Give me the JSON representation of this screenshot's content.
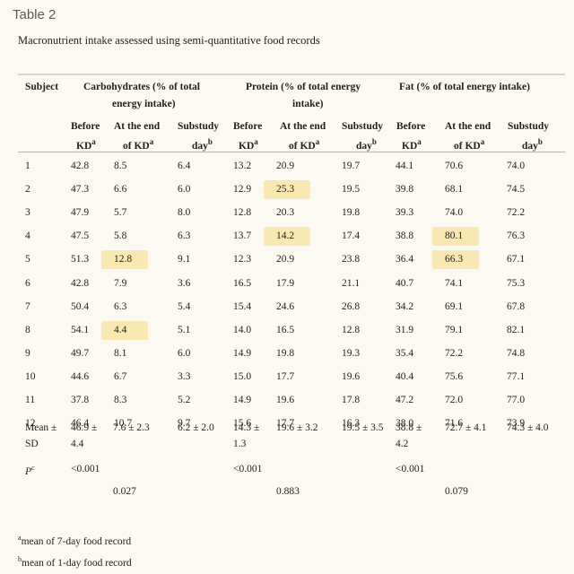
{
  "table_label": "Table 2",
  "caption": "Macronutrient intake assessed using semi-quantitative food records",
  "headers": {
    "subject": "Subject",
    "carb_group_l1": "Carbohydrates (% of total",
    "carb_group_l2": "energy intake)",
    "protein_group_l1": "Protein (% of total energy",
    "protein_group_l2": "intake)",
    "fat_group": "Fat (% of total energy intake)",
    "before_l1": "Before",
    "before_l2": "KD",
    "before_sup": "a",
    "end_l1": "At the end",
    "end_l2": "of KD",
    "end_sup": "a",
    "substudy_l1": "Substudy",
    "substudy_l2": "day",
    "substudy_sup": "b"
  },
  "rows": [
    {
      "subject": "1",
      "carb": [
        "42.8",
        "8.5",
        "6.4"
      ],
      "protein": [
        "13.2",
        "20.9",
        "19.7"
      ],
      "fat": [
        "44.1",
        "70.6",
        "74.0"
      ]
    },
    {
      "subject": "2",
      "carb": [
        "47.3",
        "6.6",
        "6.0"
      ],
      "protein": [
        "12.9",
        "25.3",
        "19.5"
      ],
      "fat": [
        "39.8",
        "68.1",
        "74.5"
      ]
    },
    {
      "subject": "3",
      "carb": [
        "47.9",
        "5.7",
        "8.0"
      ],
      "protein": [
        "12.8",
        "20.3",
        "19.8"
      ],
      "fat": [
        "39.3",
        "74.0",
        "72.2"
      ]
    },
    {
      "subject": "4",
      "carb": [
        "47.5",
        "5.8",
        "6.3"
      ],
      "protein": [
        "13.7",
        "14.2",
        "17.4"
      ],
      "fat": [
        "38.8",
        "80.1",
        "76.3"
      ]
    },
    {
      "subject": "5",
      "carb": [
        "51.3",
        "12.8",
        "9.1"
      ],
      "protein": [
        "12.3",
        "20.9",
        "23.8"
      ],
      "fat": [
        "36.4",
        "66.3",
        "67.1"
      ]
    },
    {
      "subject": "6",
      "carb": [
        "42.8",
        "7.9",
        "3.6"
      ],
      "protein": [
        "16.5",
        "17.9",
        "21.1"
      ],
      "fat": [
        "40.7",
        "74.1",
        "75.3"
      ]
    },
    {
      "subject": "7",
      "carb": [
        "50.4",
        "6.3",
        "5.4"
      ],
      "protein": [
        "15.4",
        "24.6",
        "26.8"
      ],
      "fat": [
        "34.2",
        "69.1",
        "67.8"
      ]
    },
    {
      "subject": "8",
      "carb": [
        "54.1",
        "4.4",
        "5.1"
      ],
      "protein": [
        "14.0",
        "16.5",
        "12.8"
      ],
      "fat": [
        "31.9",
        "79.1",
        "82.1"
      ]
    },
    {
      "subject": "9",
      "carb": [
        "49.7",
        "8.1",
        "6.0"
      ],
      "protein": [
        "14.9",
        "19.8",
        "19.3"
      ],
      "fat": [
        "35.4",
        "72.2",
        "74.8"
      ]
    },
    {
      "subject": "10",
      "carb": [
        "44.6",
        "6.7",
        "3.3"
      ],
      "protein": [
        "15.0",
        "17.7",
        "19.6"
      ],
      "fat": [
        "40.4",
        "75.6",
        "77.1"
      ]
    },
    {
      "subject": "11",
      "carb": [
        "37.8",
        "8.3",
        "5.2"
      ],
      "protein": [
        "14.9",
        "19.6",
        "17.8"
      ],
      "fat": [
        "47.2",
        "72.0",
        "77.0"
      ]
    },
    {
      "subject": "12",
      "carb": [
        "46.4",
        "10.7",
        "9.7"
      ],
      "protein": [
        "15.6",
        "17.7",
        "16.3"
      ],
      "fat": [
        "38.0",
        "71.6",
        "73.9"
      ]
    }
  ],
  "mean": {
    "label_l1": "Mean ±",
    "label_l2": "SD",
    "carb_before_l1": "46.9 ±",
    "carb_before_l2": "4.4",
    "carb_end": "7.6 ± 2.3",
    "carb_sub": "6.2 ± 2.0",
    "protein_before_l1": "14.3 ±",
    "protein_before_l2": "1.3",
    "protein_end": "19.6 ± 3.2",
    "protein_sub": "19.5 ± 3.5",
    "fat_before_l1": "38.8 ±",
    "fat_before_l2": "4.2",
    "fat_end": "72.7 ± 4.1",
    "fat_sub": "74.3 ± 4.0"
  },
  "p_row": {
    "label": "P",
    "label_sup": "c",
    "carb_p1": "<0.001",
    "protein_p1": "<0.001",
    "fat_p1": "<0.001",
    "carb_p2": "0.027",
    "protein_p2": "0.883",
    "fat_p2": "0.079"
  },
  "highlighted_cells": [
    "2.protein.1",
    "4.protein.1",
    "4.fat.1",
    "5.carb.1",
    "5.fat.1",
    "8.carb.1"
  ],
  "highlight_color": "#fae8b2",
  "footnotes": [
    {
      "sup": "a",
      "text": "mean of 7-day food record"
    },
    {
      "sup": "b",
      "text": "mean of 1-day food record"
    }
  ]
}
